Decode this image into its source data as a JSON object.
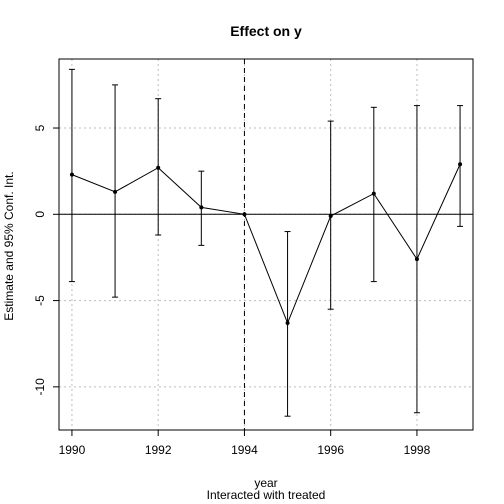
{
  "chart_data": {
    "type": "line",
    "title": "Effect on y",
    "xlabel": "year",
    "xlabel2": "Interacted with treated",
    "ylabel": "Estimate and 95% Conf. Int.",
    "x": [
      1990,
      1991,
      1992,
      1993,
      1994,
      1995,
      1996,
      1997,
      1998,
      1999
    ],
    "estimate": [
      2.3,
      1.3,
      2.7,
      0.4,
      0.0,
      -6.3,
      -0.1,
      1.2,
      -2.6,
      2.9
    ],
    "ci_low": [
      -3.9,
      -4.8,
      -1.2,
      -1.8,
      0.0,
      -11.7,
      -5.5,
      -3.9,
      -11.5,
      -0.7
    ],
    "ci_high": [
      8.4,
      7.5,
      6.7,
      2.5,
      0.0,
      -1.0,
      5.4,
      6.2,
      6.3,
      6.3
    ],
    "xlim": [
      1989.7,
      1999.3
    ],
    "ylim": [
      -12.5,
      9.0
    ],
    "xticks": [
      1990,
      1992,
      1994,
      1996,
      1998
    ],
    "yticks": [
      -10,
      -5,
      0,
      5
    ],
    "reference_hline": 0,
    "reference_vline": 1994,
    "grid": true
  }
}
